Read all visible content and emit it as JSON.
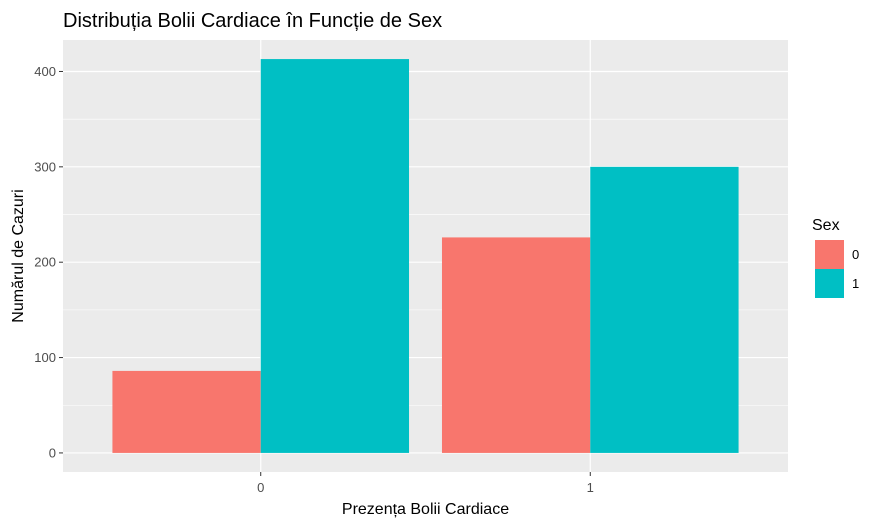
{
  "chart_data": {
    "type": "bar",
    "title": "Distribuția Bolii Cardiace în Funcție de Sex",
    "xlabel": "Prezența Bolii Cardiace",
    "ylabel": "Numărul de Cazuri",
    "categories": [
      "0",
      "1"
    ],
    "series": [
      {
        "name": "0",
        "color": "#F8766D",
        "values": [
          86,
          226
        ]
      },
      {
        "name": "1",
        "color": "#00BFC4",
        "values": [
          413,
          300
        ]
      }
    ],
    "ylim": [
      -20,
      433
    ],
    "yticks": [
      0,
      100,
      200,
      300,
      400
    ],
    "grid": true,
    "legend": {
      "title": "Sex",
      "placement": "right"
    }
  }
}
